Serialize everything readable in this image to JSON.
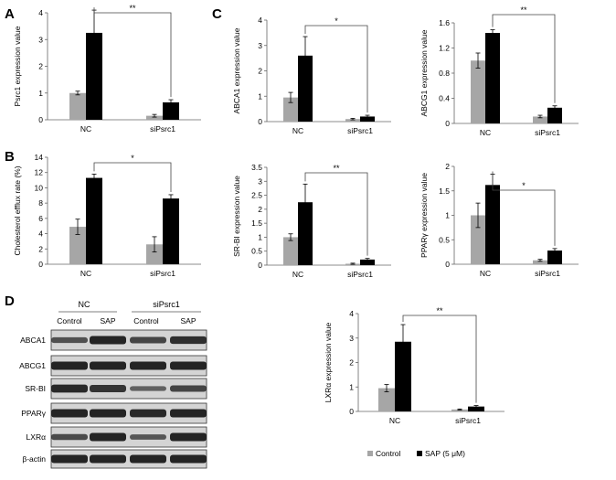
{
  "legend": {
    "control": "Control",
    "sap": "SAP (5 μM)",
    "colors": {
      "control": "#a6a6a6",
      "sap": "#000000"
    }
  },
  "panels": {
    "A": "A",
    "B": "B",
    "C": "C",
    "D": "D"
  },
  "western_blot": {
    "group_labels": [
      "NC",
      "siPsrc1"
    ],
    "lane_labels": [
      "Control",
      "SAP",
      "Control",
      "SAP"
    ],
    "proteins": [
      "ABCA1",
      "ABCG1",
      "SR-BI",
      "PPARγ",
      "LXRα",
      "β-actin"
    ]
  },
  "chart_data": [
    {
      "type": "bar",
      "panel": "A",
      "categories": [
        "NC",
        "siPsrc1"
      ],
      "series": [
        {
          "values": [
            1.0,
            0.15
          ],
          "errors": [
            0.07,
            0.05
          ]
        },
        {
          "values": [
            3.25,
            0.65
          ],
          "errors": [
            0.85,
            0.1
          ]
        }
      ],
      "ylabel": "Psrc1 expression value",
      "ylim": [
        0,
        4
      ],
      "yticks": [
        "0",
        "1",
        "2",
        "3",
        "4"
      ],
      "significance": "**"
    },
    {
      "type": "bar",
      "panel": "B",
      "categories": [
        "NC",
        "siPsrc1"
      ],
      "series": [
        {
          "values": [
            4.9,
            2.6
          ],
          "errors": [
            1.0,
            1.0
          ]
        },
        {
          "values": [
            11.3,
            8.6
          ],
          "errors": [
            0.5,
            0.5
          ]
        }
      ],
      "ylabel": "Cholesterol efflux rate (%)",
      "ylim": [
        0,
        14
      ],
      "yticks": [
        "0",
        "2",
        "4",
        "6",
        "8",
        "10",
        "12",
        "14"
      ],
      "significance": "*"
    },
    {
      "type": "bar",
      "panel": "C1",
      "categories": [
        "NC",
        "siPsrc1"
      ],
      "series": [
        {
          "values": [
            0.95,
            0.1
          ],
          "errors": [
            0.2,
            0.03
          ]
        },
        {
          "values": [
            2.6,
            0.2
          ],
          "errors": [
            0.75,
            0.05
          ]
        }
      ],
      "ylabel": "ABCA1 expression value",
      "ylim": [
        0,
        4
      ],
      "yticks": [
        "0",
        "1",
        "2",
        "3",
        "4"
      ],
      "significance": "*"
    },
    {
      "type": "bar",
      "panel": "C2",
      "categories": [
        "NC",
        "siPsrc1"
      ],
      "series": [
        {
          "values": [
            1.0,
            0.11
          ],
          "errors": [
            0.12,
            0.02
          ]
        },
        {
          "values": [
            1.44,
            0.25
          ],
          "errors": [
            0.05,
            0.03
          ]
        }
      ],
      "ylabel": "ABCG1 expression value",
      "ylim": [
        0,
        1.6
      ],
      "yticks": [
        "0",
        "0.4",
        "0.8",
        "1.2",
        "1.6"
      ],
      "significance": "**"
    },
    {
      "type": "bar",
      "panel": "C3",
      "categories": [
        "NC",
        "siPsrc1"
      ],
      "series": [
        {
          "values": [
            1.0,
            0.05
          ],
          "errors": [
            0.12,
            0.02
          ]
        },
        {
          "values": [
            2.25,
            0.2
          ],
          "errors": [
            0.65,
            0.04
          ]
        }
      ],
      "ylabel": "SR-BI  expression value",
      "ylim": [
        0,
        3.5
      ],
      "yticks": [
        "0",
        "0.5",
        "1",
        "1.5",
        "2",
        "2.5",
        "3",
        "3.5"
      ],
      "significance": "**"
    },
    {
      "type": "bar",
      "panel": "C4",
      "categories": [
        "NC",
        "siPsrc1"
      ],
      "series": [
        {
          "values": [
            1.0,
            0.08
          ],
          "errors": [
            0.25,
            0.02
          ]
        },
        {
          "values": [
            1.62,
            0.28
          ],
          "errors": [
            0.22,
            0.04
          ]
        }
      ],
      "ylabel": "PPARγ expression value",
      "ylim": [
        0,
        2
      ],
      "yticks": [
        "0",
        "0.5",
        "1",
        "1.5",
        "2"
      ],
      "significance": "*"
    },
    {
      "type": "bar",
      "panel": "D2",
      "categories": [
        "NC",
        "siPsrc1"
      ],
      "series": [
        {
          "values": [
            0.95,
            0.08
          ],
          "errors": [
            0.15,
            0.02
          ]
        },
        {
          "values": [
            2.85,
            0.2
          ],
          "errors": [
            0.7,
            0.04
          ]
        }
      ],
      "ylabel": "LXRα expression value",
      "ylim": [
        0,
        4
      ],
      "yticks": [
        "0",
        "1",
        "2",
        "3",
        "4"
      ],
      "significance": "**"
    }
  ]
}
